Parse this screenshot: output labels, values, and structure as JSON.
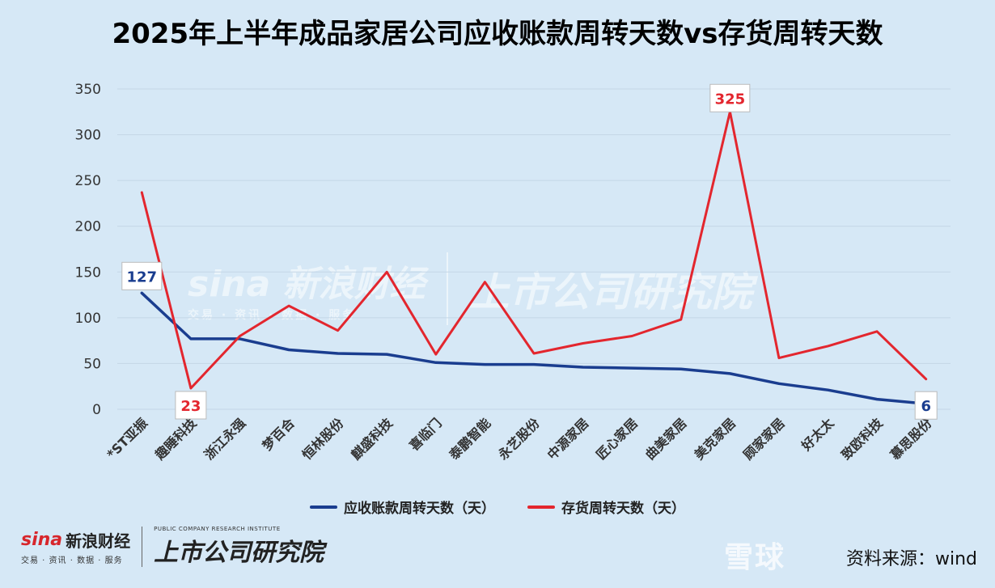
{
  "title": "2025年上半年成品家居公司应收账款周转天数vs存货周转天数",
  "colors": {
    "background": "#d6e8f6",
    "receivable": "#1a3d8f",
    "inventory": "#e3262e",
    "grid": "#c4d6e6"
  },
  "chart_data": {
    "type": "line",
    "title": "2025年上半年成品家居公司应收账款周转天数vs存货周转天数",
    "categories": [
      "*ST亚振",
      "趣睡科技",
      "浙江永强",
      "梦百合",
      "恒林股份",
      "麒盛科技",
      "喜临门",
      "泰鹏智能",
      "永艺股份",
      "中源家居",
      "匠心家居",
      "曲美家居",
      "美克家居",
      "顾家家居",
      "好太太",
      "致欧科技",
      "慕思股份"
    ],
    "ylim": [
      0,
      350
    ],
    "yticks": [
      0,
      50,
      100,
      150,
      200,
      250,
      300,
      350
    ],
    "grid": true,
    "legend_position": "bottom",
    "series": [
      {
        "name": "应收账款周转天数（天）",
        "values": [
          127,
          77,
          77,
          65,
          61,
          60,
          51,
          49,
          49,
          46,
          45,
          44,
          39,
          28,
          21,
          11,
          6
        ]
      },
      {
        "name": "存货周转天数（天）",
        "values": [
          237,
          23,
          80,
          113,
          86,
          150,
          60,
          139,
          61,
          72,
          80,
          98,
          325,
          56,
          69,
          85,
          33
        ]
      }
    ],
    "annotations": [
      {
        "series": 0,
        "index": 0,
        "text": "127"
      },
      {
        "series": 0,
        "index": 16,
        "text": "6"
      },
      {
        "series": 1,
        "index": 1,
        "text": "23"
      },
      {
        "series": 1,
        "index": 12,
        "text": "325"
      }
    ]
  },
  "footer": {
    "sina_brand": "sina",
    "sina_name": "新浪财经",
    "sina_sub": "交易 · 资讯 · 数据 · 服务",
    "company_en": "PUBLIC COMPANY RESEARCH INSTITUTE",
    "company_cn": "上市公司研究院",
    "xueqiu": "雪球",
    "source": "资料来源：wind"
  },
  "watermark": {
    "sina": "sina 新浪财经",
    "sina_sub": "交易 · 资讯 · 数据 · 服务",
    "company": "上市公司研究院"
  }
}
